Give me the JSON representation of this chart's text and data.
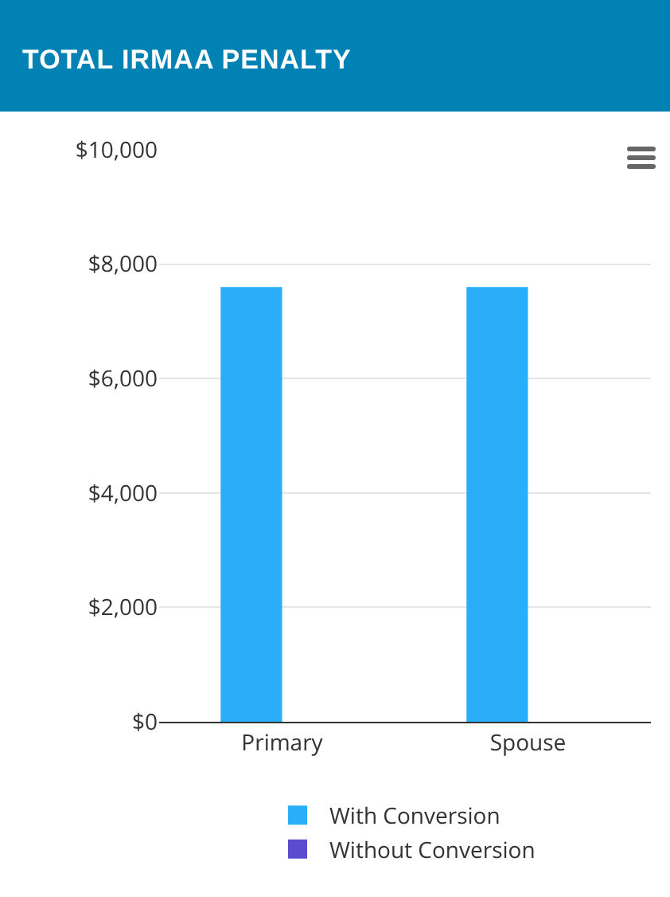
{
  "chart_data": {
    "type": "bar",
    "title": "TOTAL IRMAA PENALTY",
    "categories": [
      "Primary",
      "Spouse"
    ],
    "series": [
      {
        "name": "With Conversion",
        "color": "#2aaefa",
        "values": [
          7600,
          7600
        ]
      },
      {
        "name": "Without Conversion",
        "color": "#5b4ccf",
        "values": [
          0,
          0
        ]
      }
    ],
    "ylim": [
      0,
      10000
    ],
    "yticks": [
      {
        "value": 0,
        "label": "$0"
      },
      {
        "value": 2000,
        "label": "$2,000"
      },
      {
        "value": 4000,
        "label": "$4,000"
      },
      {
        "value": 6000,
        "label": "$6,000"
      },
      {
        "value": 8000,
        "label": "$8,000"
      },
      {
        "value": 10000,
        "label": "$10,000"
      }
    ],
    "grid": "y",
    "legend": "bottom"
  }
}
